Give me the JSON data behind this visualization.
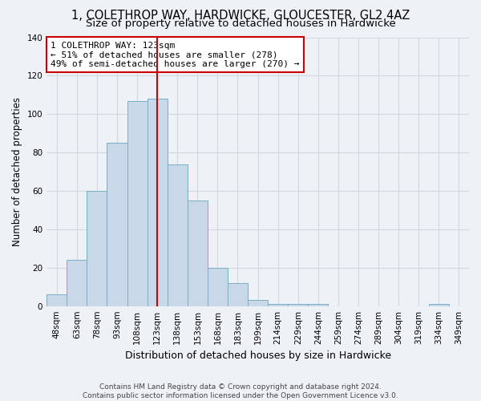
{
  "title1": "1, COLETHROP WAY, HARDWICKE, GLOUCESTER, GL2 4AZ",
  "title2": "Size of property relative to detached houses in Hardwicke",
  "xlabel": "Distribution of detached houses by size in Hardwicke",
  "ylabel": "Number of detached properties",
  "categories": [
    "48sqm",
    "63sqm",
    "78sqm",
    "93sqm",
    "108sqm",
    "123sqm",
    "138sqm",
    "153sqm",
    "168sqm",
    "183sqm",
    "199sqm",
    "214sqm",
    "229sqm",
    "244sqm",
    "259sqm",
    "274sqm",
    "289sqm",
    "304sqm",
    "319sqm",
    "334sqm",
    "349sqm"
  ],
  "values": [
    6,
    24,
    60,
    85,
    107,
    108,
    74,
    55,
    20,
    12,
    3,
    1,
    1,
    1,
    0,
    0,
    0,
    0,
    0,
    1,
    0
  ],
  "bar_color": "#c8d8e8",
  "bar_edge_color": "#7aafc8",
  "highlight_line_color": "#cc0000",
  "annotation_line1": "1 COLETHROP WAY: 123sqm",
  "annotation_line2": "← 51% of detached houses are smaller (278)",
  "annotation_line3": "49% of semi-detached houses are larger (270) →",
  "annotation_box_color": "#ffffff",
  "annotation_box_edge_color": "#cc0000",
  "ylim": [
    0,
    140
  ],
  "yticks": [
    0,
    20,
    40,
    60,
    80,
    100,
    120,
    140
  ],
  "grid_color": "#d0d8e0",
  "background_color": "#eef2f7",
  "footer1": "Contains HM Land Registry data © Crown copyright and database right 2024.",
  "footer2": "Contains public sector information licensed under the Open Government Licence v3.0.",
  "title1_fontsize": 10.5,
  "title2_fontsize": 9.5,
  "xlabel_fontsize": 9,
  "ylabel_fontsize": 8.5,
  "tick_fontsize": 7.5,
  "annotation_fontsize": 8,
  "footer_fontsize": 6.5
}
